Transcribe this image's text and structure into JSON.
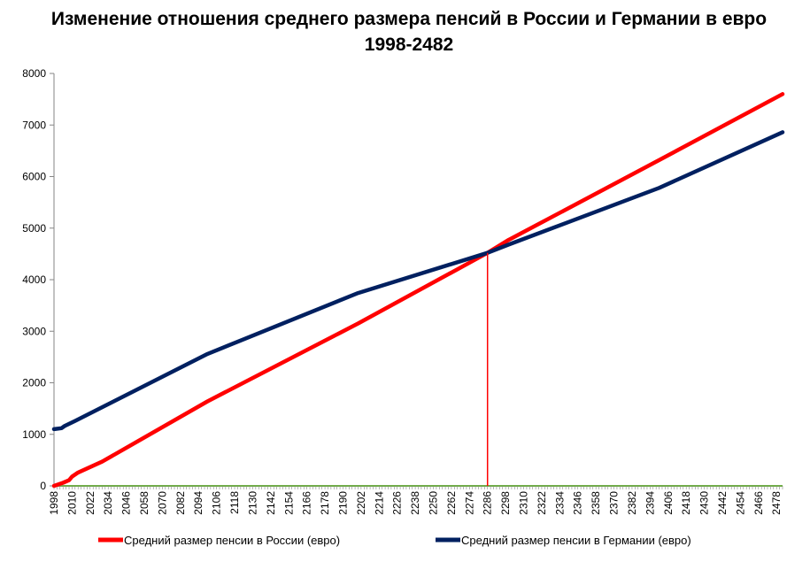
{
  "chart_data": {
    "type": "line",
    "title": "Изменение отношения среднего размера пенсий в России и Германии в евро",
    "subtitle": "1998-2482",
    "xlabel": "",
    "ylabel": "",
    "xlim": [
      1998,
      2482
    ],
    "ylim": [
      0,
      8000
    ],
    "y_ticks": [
      0,
      1000,
      2000,
      3000,
      4000,
      5000,
      6000,
      7000,
      8000
    ],
    "x_tick_start": 1998,
    "x_tick_end": 2482,
    "x_tick_label_step": 12,
    "grid": false,
    "legend_position": "bottom",
    "series": [
      {
        "name": "Средний размер пенсии в России (евро)",
        "color": "#ff0000",
        "points": [
          [
            1998,
            0
          ],
          [
            2004,
            60
          ],
          [
            2008,
            110
          ],
          [
            2010,
            180
          ],
          [
            2014,
            260
          ],
          [
            2030,
            470
          ],
          [
            2100,
            1640
          ],
          [
            2200,
            3150
          ],
          [
            2286,
            4520
          ],
          [
            2300,
            4770
          ],
          [
            2400,
            6320
          ],
          [
            2482,
            7600
          ]
        ]
      },
      {
        "name": "Средний размер пенсии в Германии (евро)",
        "color": "#002060",
        "points": [
          [
            1998,
            1100
          ],
          [
            2003,
            1120
          ],
          [
            2005,
            1160
          ],
          [
            2012,
            1260
          ],
          [
            2100,
            2560
          ],
          [
            2200,
            3740
          ],
          [
            2286,
            4520
          ],
          [
            2300,
            4680
          ],
          [
            2400,
            5780
          ],
          [
            2482,
            6860
          ]
        ]
      }
    ],
    "annotations": [
      {
        "type": "vertical-line",
        "x": 2286,
        "y_from": 0,
        "y_to": 4520,
        "color": "#ff0000"
      }
    ],
    "baseline_color": "#70ad47"
  }
}
